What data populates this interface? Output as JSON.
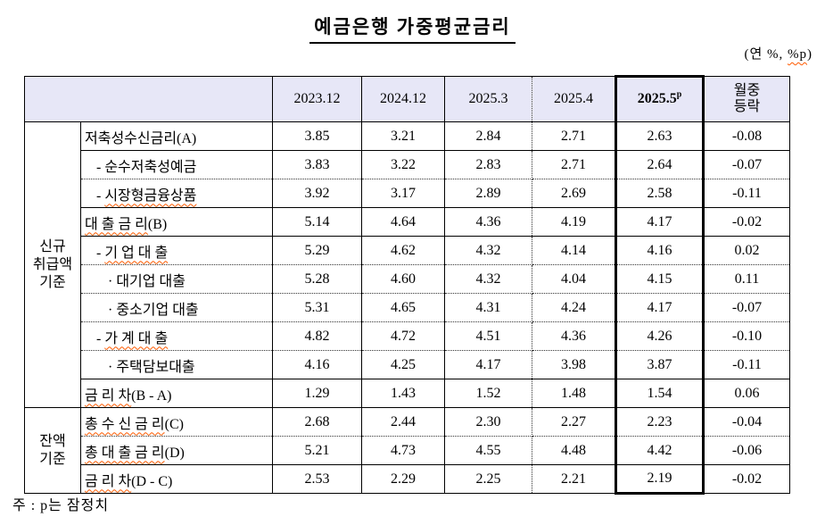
{
  "title": "예금은행 가중평균금리",
  "unit": {
    "pre": "(연 %, ",
    "wavy": "%p",
    "post": ")"
  },
  "footnote": "주 : p는 잠정치",
  "colors": {
    "header_bg": "#e7e7f7",
    "border": "#000000",
    "wavy_underline": "#ff5a00"
  },
  "table": {
    "columns": [
      {
        "label": "2023.12"
      },
      {
        "label": "2024.12"
      },
      {
        "label": "2025.3"
      },
      {
        "label": "2025.4"
      },
      {
        "label": "2025.5",
        "sup": "p",
        "highlight": true
      },
      {
        "label": "월중\n등락"
      }
    ],
    "groups": [
      {
        "label": "신규\n취급액\n기준",
        "rows": 10
      },
      {
        "label": "잔액\n기준",
        "rows": 3
      }
    ],
    "rows": [
      {
        "indent": 0,
        "pre": "",
        "text": "저축성수신금리",
        "wavy": false,
        "suffix": "(A)",
        "sep": "solid",
        "values": [
          "3.85",
          "3.21",
          "2.84",
          "2.71",
          "2.63",
          "-0.08"
        ]
      },
      {
        "indent": 1,
        "pre": "- ",
        "text": "순수저축성예금",
        "wavy": false,
        "suffix": "",
        "sep": "dotted",
        "values": [
          "3.83",
          "3.22",
          "2.83",
          "2.71",
          "2.64",
          "-0.07"
        ]
      },
      {
        "indent": 1,
        "pre": "- ",
        "text": "시장형금융상품",
        "wavy": true,
        "suffix": "",
        "sep": "solid",
        "values": [
          "3.92",
          "3.17",
          "2.89",
          "2.69",
          "2.58",
          "-0.11"
        ]
      },
      {
        "indent": 0,
        "pre": "",
        "text": "대 출 금 리",
        "wavy": true,
        "suffix": "(B)",
        "sep": "solid",
        "values": [
          "5.14",
          "4.64",
          "4.36",
          "4.19",
          "4.17",
          "-0.02"
        ]
      },
      {
        "indent": 1,
        "pre": "- ",
        "text": "기 업 대 출",
        "wavy": true,
        "suffix": "",
        "sep": "dotted",
        "values": [
          "5.29",
          "4.62",
          "4.32",
          "4.14",
          "4.16",
          "0.02"
        ]
      },
      {
        "indent": 2,
        "pre": "· ",
        "text": "대기업 대출",
        "wavy": false,
        "suffix": "",
        "sep": "dotted",
        "values": [
          "5.28",
          "4.60",
          "4.32",
          "4.04",
          "4.15",
          "0.11"
        ]
      },
      {
        "indent": 2,
        "pre": "· ",
        "text": "중소기업 대출",
        "wavy": false,
        "suffix": "",
        "sep": "dotted",
        "values": [
          "5.31",
          "4.65",
          "4.31",
          "4.24",
          "4.17",
          "-0.07"
        ]
      },
      {
        "indent": 1,
        "pre": "- ",
        "text": "가 계 대 출",
        "wavy": true,
        "suffix": "",
        "sep": "dotted",
        "values": [
          "4.82",
          "4.72",
          "4.51",
          "4.36",
          "4.26",
          "-0.10"
        ]
      },
      {
        "indent": 2,
        "pre": "· ",
        "text": "주택담보대출",
        "wavy": false,
        "suffix": "",
        "sep": "solid",
        "values": [
          "4.16",
          "4.25",
          "4.17",
          "3.98",
          "3.87",
          "-0.11"
        ]
      },
      {
        "indent": 0,
        "pre": "",
        "text": "금 리 차",
        "wavy": true,
        "suffix": "(B - A)",
        "sep": "solid",
        "values": [
          "1.29",
          "1.43",
          "1.52",
          "1.48",
          "1.54",
          "0.06"
        ]
      },
      {
        "indent": 0,
        "pre": "",
        "text": "총 수 신 금 리",
        "wavy": true,
        "suffix": "(C)",
        "sep": "dotted",
        "values": [
          "2.68",
          "2.44",
          "2.30",
          "2.27",
          "2.23",
          "-0.04"
        ]
      },
      {
        "indent": 0,
        "pre": "",
        "text": "총 대 출 금 리",
        "wavy": true,
        "suffix": "(D)",
        "sep": "solid",
        "values": [
          "5.21",
          "4.73",
          "4.55",
          "4.48",
          "4.42",
          "-0.06"
        ]
      },
      {
        "indent": 0,
        "pre": "",
        "text": "금 리 차",
        "wavy": true,
        "suffix": "(D - C)",
        "sep": "none",
        "values": [
          "2.53",
          "2.29",
          "2.25",
          "2.21",
          "2.19",
          "-0.02"
        ]
      }
    ]
  }
}
